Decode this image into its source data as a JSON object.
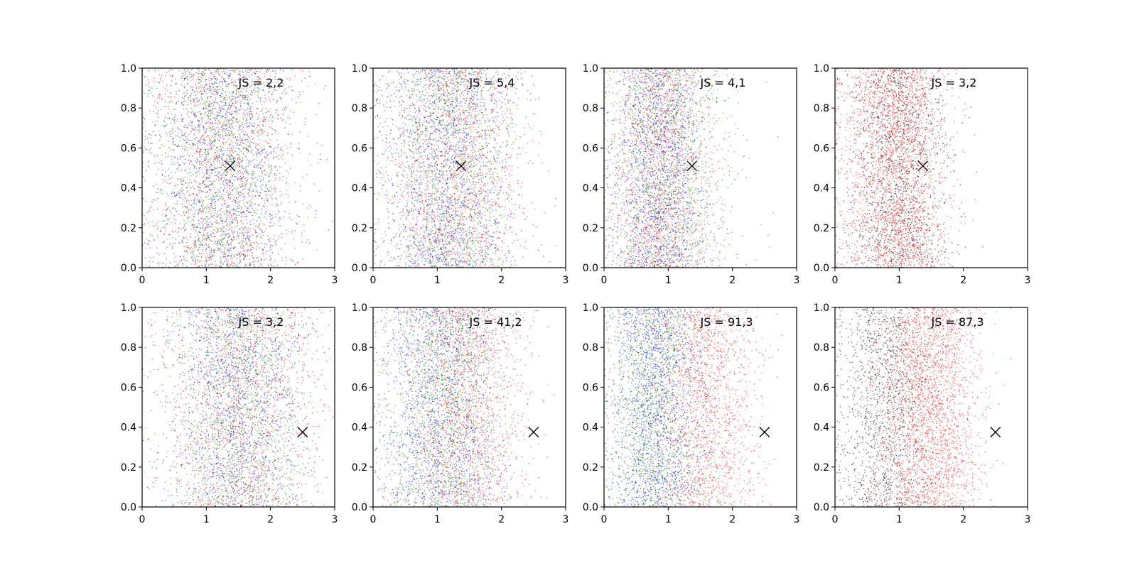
{
  "colors": {
    "blue": "#0000ff",
    "green": "#008000",
    "red": "#ff0000",
    "black": "#000000"
  },
  "chart_data": [
    {
      "type": "scatter",
      "annotation": "JS = 2,2",
      "xlim": [
        0,
        3
      ],
      "ylim": [
        0,
        1
      ],
      "xticks": [
        "0",
        "1",
        "2",
        "3"
      ],
      "yticks": [
        "0.0",
        "0.2",
        "0.4",
        "0.6",
        "0.8",
        "1.0"
      ],
      "marker": {
        "symbol": "x",
        "x": 1.37,
        "y": 0.51
      },
      "series": [
        {
          "color": "blue",
          "x_mean": 1.25,
          "x_sd": 0.55,
          "count": 1100
        },
        {
          "color": "green",
          "x_mean": 1.25,
          "x_sd": 0.55,
          "count": 1100
        },
        {
          "color": "red",
          "x_mean": 1.3,
          "x_sd": 0.6,
          "count": 1100
        },
        {
          "color": "black",
          "x_mean": 1.15,
          "x_sd": 0.45,
          "count": 400
        }
      ]
    },
    {
      "type": "scatter",
      "annotation": "JS = 5,4",
      "xlim": [
        0,
        3
      ],
      "ylim": [
        0,
        1
      ],
      "xticks": [
        "0",
        "1",
        "2",
        "3"
      ],
      "yticks": [
        "0.0",
        "0.2",
        "0.4",
        "0.6",
        "0.8",
        "1.0"
      ],
      "marker": {
        "symbol": "x",
        "x": 1.37,
        "y": 0.51
      },
      "series": [
        {
          "color": "blue",
          "x_mean": 1.15,
          "x_sd": 0.5,
          "count": 1300
        },
        {
          "color": "green",
          "x_mean": 1.2,
          "x_sd": 0.5,
          "count": 1300
        },
        {
          "color": "red",
          "x_mean": 1.3,
          "x_sd": 0.55,
          "count": 1300
        },
        {
          "color": "black",
          "x_mean": 1.1,
          "x_sd": 0.45,
          "count": 150
        }
      ]
    },
    {
      "type": "scatter",
      "annotation": "JS = 4,1",
      "xlim": [
        0,
        3
      ],
      "ylim": [
        0,
        1
      ],
      "xticks": [
        "0",
        "1",
        "2",
        "3"
      ],
      "yticks": [
        "0.0",
        "0.2",
        "0.4",
        "0.6",
        "0.8",
        "1.0"
      ],
      "marker": {
        "symbol": "x",
        "x": 1.37,
        "y": 0.51
      },
      "series": [
        {
          "color": "blue",
          "x_mean": 0.85,
          "x_sd": 0.35,
          "count": 1300
        },
        {
          "color": "green",
          "x_mean": 1.0,
          "x_sd": 0.5,
          "count": 1300
        },
        {
          "color": "red",
          "x_mean": 0.9,
          "x_sd": 0.38,
          "count": 1300
        },
        {
          "color": "black",
          "x_mean": 0.85,
          "x_sd": 0.35,
          "count": 150
        }
      ]
    },
    {
      "type": "scatter",
      "annotation": "JS = 3,2",
      "xlim": [
        0,
        3
      ],
      "ylim": [
        0,
        1
      ],
      "xticks": [
        "0",
        "1",
        "2",
        "3"
      ],
      "yticks": [
        "0.0",
        "0.2",
        "0.4",
        "0.6",
        "0.8",
        "1.0"
      ],
      "marker": {
        "symbol": "x",
        "x": 1.37,
        "y": 0.51
      },
      "series": [
        {
          "color": "black",
          "x_mean": 0.95,
          "x_sd": 0.4,
          "count": 1300
        },
        {
          "color": "red",
          "x_mean": 0.95,
          "x_sd": 0.4,
          "count": 2400
        }
      ]
    },
    {
      "type": "scatter",
      "annotation": "JS = 3,2",
      "xlim": [
        0,
        3
      ],
      "ylim": [
        0,
        1
      ],
      "xticks": [
        "0",
        "1",
        "2",
        "3"
      ],
      "yticks": [
        "0.0",
        "0.2",
        "0.4",
        "0.6",
        "0.8",
        "1.0"
      ],
      "marker": {
        "symbol": "x",
        "x": 2.5,
        "y": 0.375
      },
      "series": [
        {
          "color": "blue",
          "x_mean": 1.5,
          "x_sd": 0.55,
          "count": 1200
        },
        {
          "color": "green",
          "x_mean": 1.5,
          "x_sd": 0.55,
          "count": 1200
        },
        {
          "color": "red",
          "x_mean": 1.55,
          "x_sd": 0.6,
          "count": 1200
        },
        {
          "color": "black",
          "x_mean": 1.5,
          "x_sd": 0.5,
          "count": 250
        }
      ]
    },
    {
      "type": "scatter",
      "annotation": "JS = 41,2",
      "xlim": [
        0,
        3
      ],
      "ylim": [
        0,
        1
      ],
      "xticks": [
        "0",
        "1",
        "2",
        "3"
      ],
      "yticks": [
        "0.0",
        "0.2",
        "0.4",
        "0.6",
        "0.8",
        "1.0"
      ],
      "marker": {
        "symbol": "x",
        "x": 2.5,
        "y": 0.375
      },
      "series": [
        {
          "color": "blue",
          "x_mean": 1.05,
          "x_sd": 0.5,
          "count": 1300
        },
        {
          "color": "green",
          "x_mean": 1.1,
          "x_sd": 0.45,
          "count": 1300
        },
        {
          "color": "red",
          "x_mean": 1.45,
          "x_sd": 0.45,
          "count": 1300
        },
        {
          "color": "black",
          "x_mean": 1.1,
          "x_sd": 0.45,
          "count": 150
        }
      ]
    },
    {
      "type": "scatter",
      "annotation": "JS = 91,3",
      "xlim": [
        0,
        3
      ],
      "ylim": [
        0,
        1
      ],
      "xticks": [
        "0",
        "1",
        "2",
        "3"
      ],
      "yticks": [
        "0.0",
        "0.2",
        "0.4",
        "0.6",
        "0.8",
        "1.0"
      ],
      "marker": {
        "symbol": "x",
        "x": 2.5,
        "y": 0.375
      },
      "series": [
        {
          "color": "blue",
          "x_mean": 0.8,
          "x_sd": 0.35,
          "count": 1300
        },
        {
          "color": "green",
          "x_mean": 0.75,
          "x_sd": 0.35,
          "count": 1300
        },
        {
          "color": "red",
          "x_mean": 1.6,
          "x_sd": 0.4,
          "count": 1500
        },
        {
          "color": "black",
          "x_mean": 0.8,
          "x_sd": 0.35,
          "count": 150
        }
      ]
    },
    {
      "type": "scatter",
      "annotation": "JS = 87,3",
      "xlim": [
        0,
        3
      ],
      "ylim": [
        0,
        1
      ],
      "xticks": [
        "0",
        "1",
        "2",
        "3"
      ],
      "yticks": [
        "0.0",
        "0.2",
        "0.4",
        "0.6",
        "0.8",
        "1.0"
      ],
      "marker": {
        "symbol": "x",
        "x": 2.5,
        "y": 0.375
      },
      "series": [
        {
          "color": "black",
          "x_mean": 0.75,
          "x_sd": 0.35,
          "count": 1300
        },
        {
          "color": "red",
          "x_mean": 1.45,
          "x_sd": 0.4,
          "count": 2400
        }
      ]
    }
  ]
}
